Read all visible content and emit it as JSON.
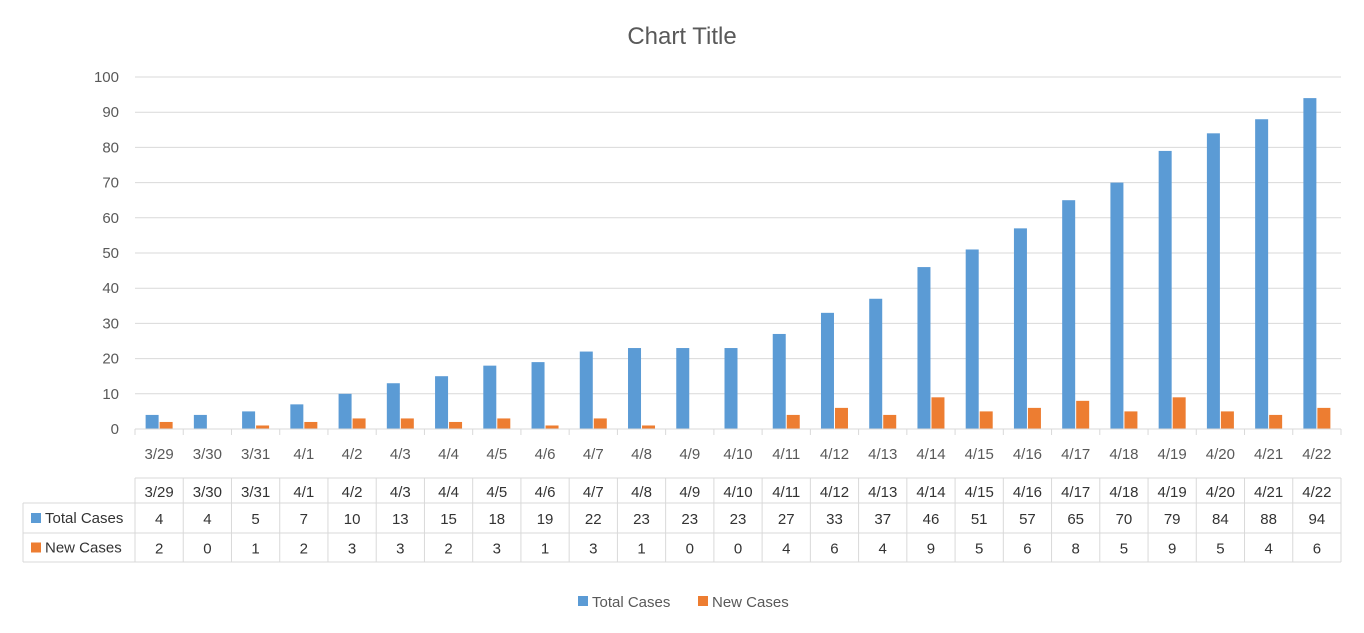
{
  "chart_data": {
    "type": "bar",
    "title": "Chart Title",
    "xlabel": "",
    "ylabel": "",
    "ylim": [
      0,
      100
    ],
    "yticks": [
      0,
      10,
      20,
      30,
      40,
      50,
      60,
      70,
      80,
      90,
      100
    ],
    "grid": true,
    "legend_position": "bottom",
    "data_table": true,
    "categories": [
      "3/29",
      "3/30",
      "3/31",
      "4/1",
      "4/2",
      "4/3",
      "4/4",
      "4/5",
      "4/6",
      "4/7",
      "4/8",
      "4/9",
      "4/10",
      "4/11",
      "4/12",
      "4/13",
      "4/14",
      "4/15",
      "4/16",
      "4/17",
      "4/18",
      "4/19",
      "4/20",
      "4/21",
      "4/22"
    ],
    "series": [
      {
        "name": "Total Cases",
        "color": "#5B9BD5",
        "values": [
          4,
          4,
          5,
          7,
          10,
          13,
          15,
          18,
          19,
          22,
          23,
          23,
          23,
          27,
          33,
          37,
          46,
          51,
          57,
          65,
          70,
          79,
          84,
          88,
          94
        ]
      },
      {
        "name": "New Cases",
        "color": "#ED7D31",
        "values": [
          2,
          0,
          1,
          2,
          3,
          3,
          2,
          3,
          1,
          3,
          1,
          0,
          0,
          4,
          6,
          4,
          9,
          5,
          6,
          8,
          5,
          9,
          5,
          4,
          6
        ]
      }
    ]
  }
}
